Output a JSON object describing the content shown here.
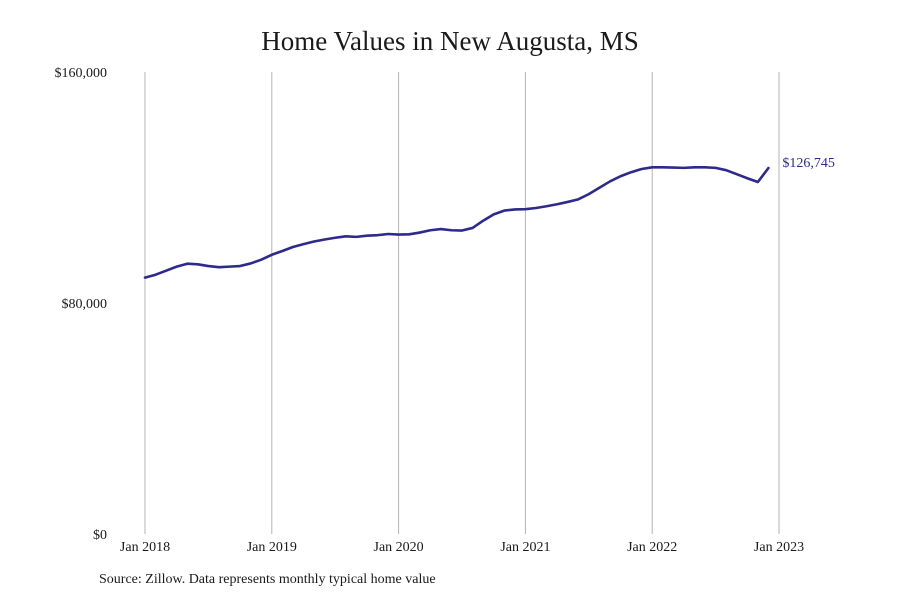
{
  "colors": {
    "line": "#2e2a8c",
    "grid": "#b3b3b3",
    "text": "#1a1a1a"
  },
  "chart_data": {
    "type": "line",
    "title": "Home Values in New Augusta, MS",
    "xlabel": "",
    "ylabel": "",
    "source": "Source: Zillow. Data represents monthly typical home value",
    "ylim": [
      0,
      160000
    ],
    "y_ticks": [
      {
        "value": 0,
        "label": "$0"
      },
      {
        "value": 80000,
        "label": "$80,000"
      },
      {
        "value": 160000,
        "label": "$160,000"
      }
    ],
    "x_ticks": [
      {
        "index": 0,
        "label": "Jan 2018"
      },
      {
        "index": 12,
        "label": "Jan 2019"
      },
      {
        "index": 24,
        "label": "Jan 2020"
      },
      {
        "index": 36,
        "label": "Jan 2021"
      },
      {
        "index": 48,
        "label": "Jan 2022"
      },
      {
        "index": 60,
        "label": "Jan 2023"
      }
    ],
    "grid": "vertical",
    "end_label": "$126,745",
    "series": [
      {
        "values": [
          88800,
          89800,
          91200,
          92600,
          93600,
          93400,
          92800,
          92400,
          92600,
          92800,
          93700,
          95000,
          96700,
          98000,
          99400,
          100400,
          101300,
          102000,
          102600,
          103100,
          102900,
          103300,
          103500,
          103900,
          103700,
          103800,
          104400,
          105200,
          105600,
          105200,
          105100,
          106000,
          108500,
          110700,
          112000,
          112400,
          112500,
          112900,
          113500,
          114200,
          115000,
          115900,
          117700,
          119900,
          122100,
          123900,
          125300,
          126400,
          127000,
          127000,
          126900,
          126800,
          127000,
          127000,
          126800,
          126000,
          124600,
          123200,
          121900,
          126745
        ]
      }
    ]
  }
}
